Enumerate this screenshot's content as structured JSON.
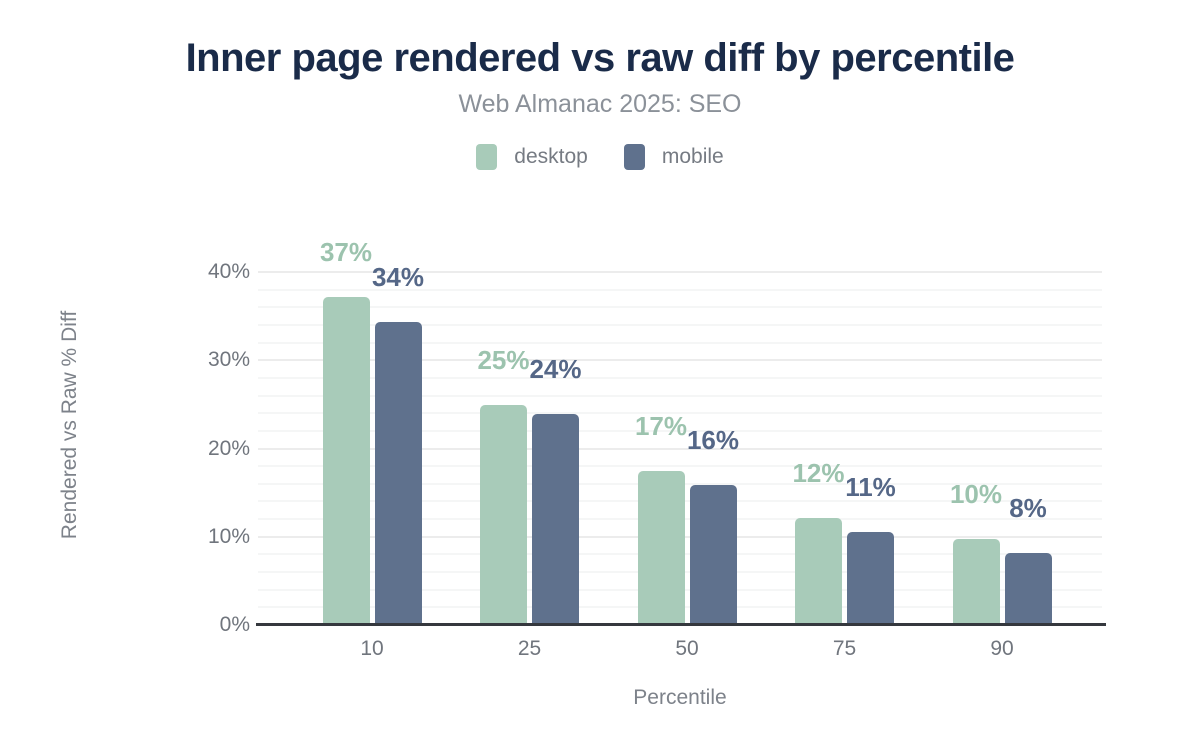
{
  "chart_data": {
    "type": "bar",
    "title": "Inner page rendered vs raw diff by percentile",
    "subtitle": "Web Almanac 2025: SEO",
    "xlabel": "Percentile",
    "ylabel": "Rendered vs Raw % Diff",
    "categories": [
      "10",
      "25",
      "50",
      "75",
      "90"
    ],
    "series": [
      {
        "name": "desktop",
        "color": "#a8cbb9",
        "label_color": "#9cc3ae",
        "values": [
          37,
          25,
          17,
          12,
          10
        ],
        "labels": [
          "37%",
          "25%",
          "17%",
          "12%",
          "10%"
        ],
        "bar_heights_pct": [
          37.2,
          24.9,
          17.4,
          12.1,
          9.8
        ]
      },
      {
        "name": "mobile",
        "color": "#5f718d",
        "label_color": "#556787",
        "values": [
          34,
          24,
          16,
          11,
          8
        ],
        "labels": [
          "34%",
          "24%",
          "16%",
          "11%",
          "8%"
        ],
        "bar_heights_pct": [
          34.3,
          23.9,
          15.9,
          10.5,
          8.2
        ]
      }
    ],
    "y_ticks": [
      "0%",
      "10%",
      "20%",
      "30%",
      "40%"
    ],
    "ylim": [
      0,
      40
    ],
    "grid": {
      "major_step": 10,
      "minor_step": 2,
      "major_color": "#ececec",
      "minor_color": "#f5f6f6"
    },
    "legend_position": "top",
    "axis_line_color": "#35383e",
    "title_color": "#1a2b49"
  }
}
